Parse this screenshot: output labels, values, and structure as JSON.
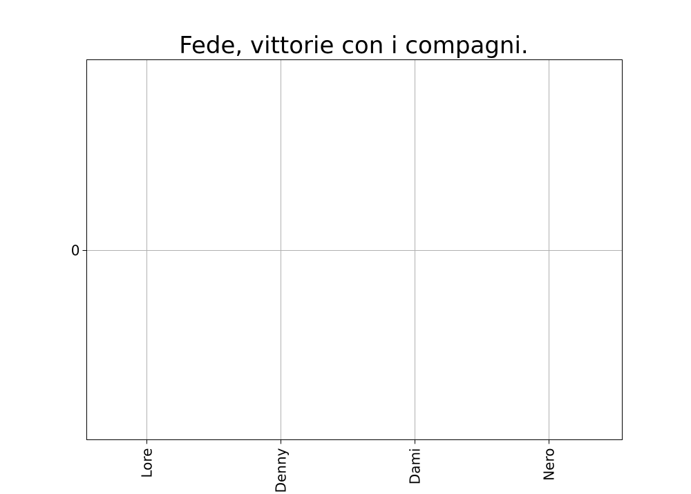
{
  "chart_data": {
    "type": "bar",
    "title": "Fede, vittorie con i compagni.",
    "categories": [
      "Lore",
      "Denny",
      "Dami",
      "Nero"
    ],
    "values": [
      0,
      0,
      0,
      0
    ],
    "yticks": [
      0
    ],
    "ylim": [
      -1,
      1
    ],
    "grid": true,
    "colors": {
      "grid": "#b0b0b0",
      "frame": "#000000",
      "bar": "#1f77b4"
    }
  }
}
